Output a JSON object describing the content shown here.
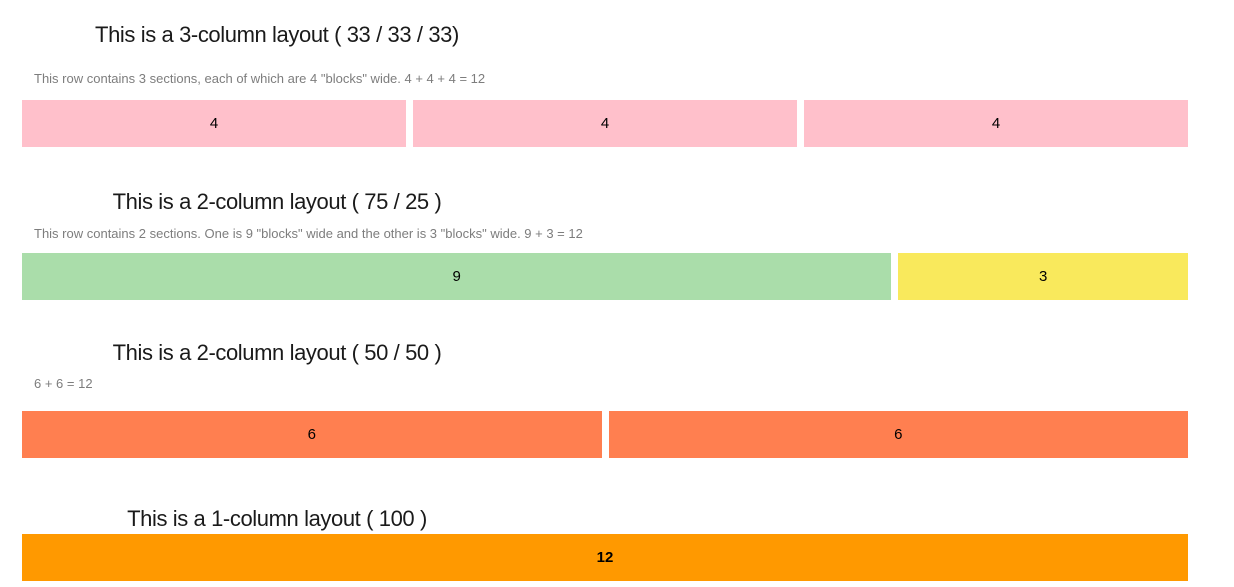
{
  "page": {
    "background": "#ffffff",
    "heading_color": "#1a1a1a",
    "description_color": "#7d7d7d",
    "gutter_color": "#ffffff"
  },
  "sections": [
    {
      "heading": "This is a 3-column layout ( 33 / 33 / 33)",
      "description": "This row contains 3 sections, each of which are 4 \"blocks\" wide. 4 + 4 + 4 = 12",
      "blocks": [
        {
          "label": "4",
          "span": 4,
          "color": "#ffc0cb"
        },
        {
          "label": "4",
          "span": 4,
          "color": "#ffc0cb"
        },
        {
          "label": "4",
          "span": 4,
          "color": "#ffc0cb"
        }
      ]
    },
    {
      "heading": "This is a 2-column layout ( 75 / 25 )",
      "description": "This row contains 2 sections. One is 9 \"blocks\" wide and the other is 3 \"blocks\" wide. 9 + 3 = 12",
      "blocks": [
        {
          "label": "9",
          "span": 9,
          "color": "#aaddaa"
        },
        {
          "label": "3",
          "span": 3,
          "color": "#f9e95c"
        }
      ]
    },
    {
      "heading": "This is a 2-column layout ( 50 / 50 )",
      "description": "6 + 6 = 12",
      "blocks": [
        {
          "label": "6",
          "span": 6,
          "color": "#ff7f50"
        },
        {
          "label": "6",
          "span": 6,
          "color": "#ff7f50"
        }
      ]
    },
    {
      "heading": "This is a 1-column layout ( 100 )",
      "description": "",
      "blocks": [
        {
          "label": "12",
          "span": 12,
          "color": "#ff9900"
        }
      ]
    }
  ]
}
